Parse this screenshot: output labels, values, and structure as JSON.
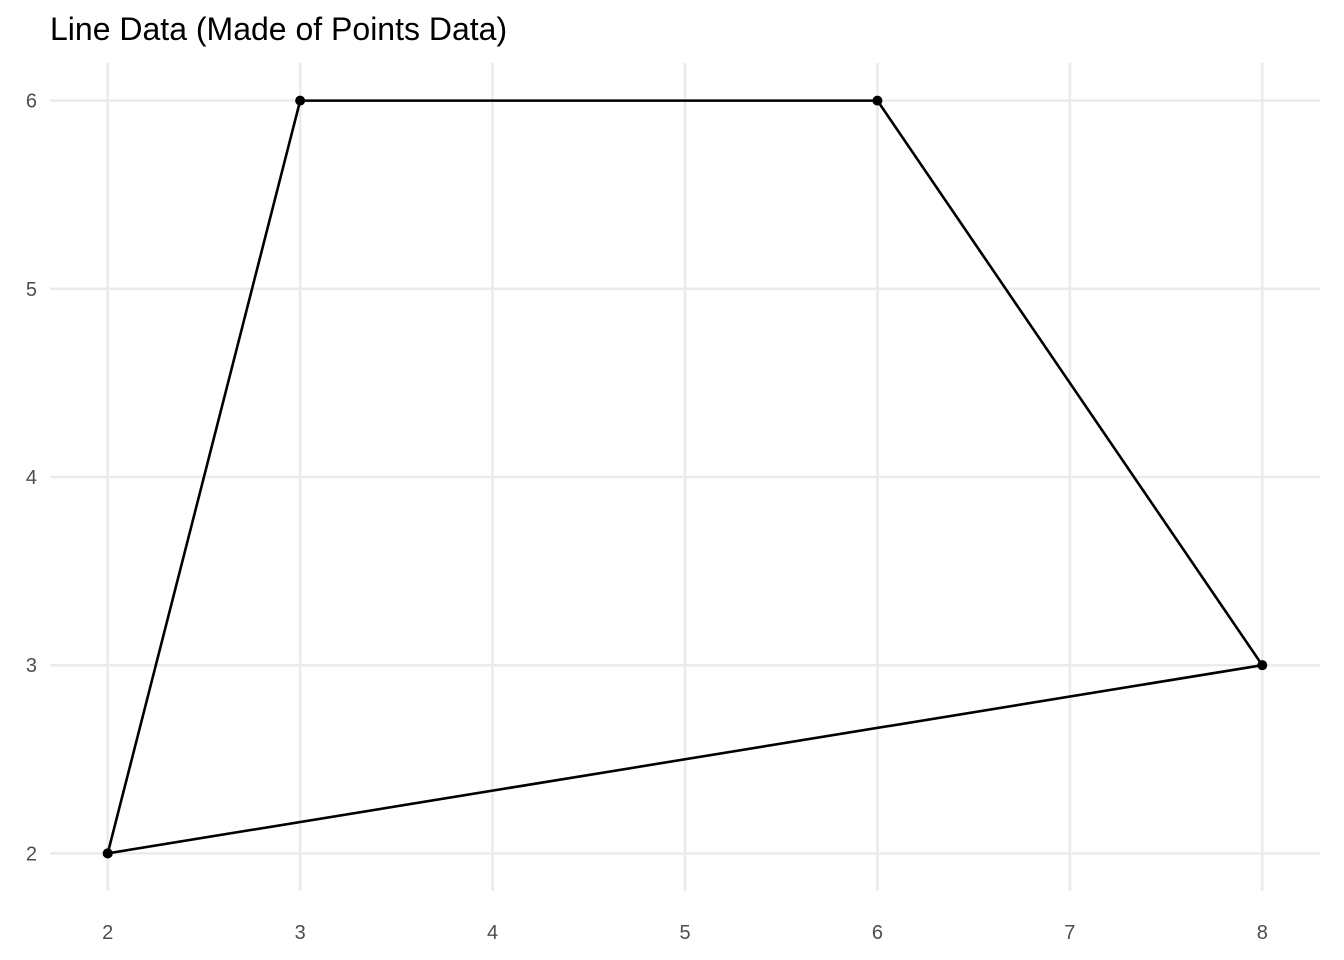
{
  "chart_data": {
    "type": "line",
    "title": "Line Data (Made of Points Data)",
    "xlabel": "",
    "ylabel": "",
    "xlim": [
      1.7,
      8.3
    ],
    "ylim": [
      1.8,
      6.2
    ],
    "grid": true,
    "x_ticks": [
      2,
      3,
      4,
      5,
      6,
      7,
      8
    ],
    "y_ticks": [
      2,
      3,
      4,
      5,
      6
    ],
    "points": [
      {
        "x": 2,
        "y": 2
      },
      {
        "x": 3,
        "y": 6
      },
      {
        "x": 6,
        "y": 6
      },
      {
        "x": 8,
        "y": 3
      },
      {
        "x": 2,
        "y": 2
      }
    ],
    "colors": {
      "line": "#000000",
      "grid": "#ebebeb",
      "tick_text": "#4d4d4d",
      "background": "#ffffff"
    }
  }
}
